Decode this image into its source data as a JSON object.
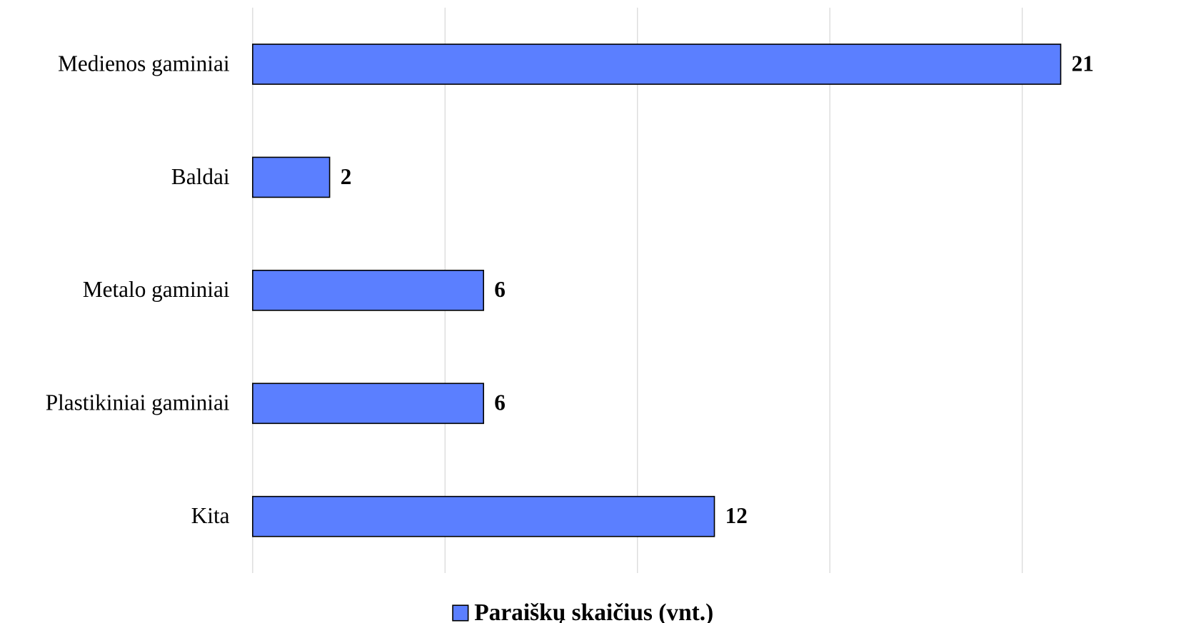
{
  "chart_data": {
    "type": "bar",
    "orientation": "horizontal",
    "categories": [
      "Medienos gaminiai",
      "Baldai",
      "Metalo gaminiai",
      "Plastikiniai gaminiai",
      "Kita"
    ],
    "series": [
      {
        "name": "Paraiškų skaičius (vnt.)",
        "color": "#5b7fff",
        "values": [
          21,
          2,
          6,
          6,
          12
        ]
      }
    ],
    "xlim": [
      0,
      23
    ],
    "xticks": [
      0,
      5,
      10,
      15,
      20
    ],
    "grid": true,
    "legend": "bottom"
  }
}
